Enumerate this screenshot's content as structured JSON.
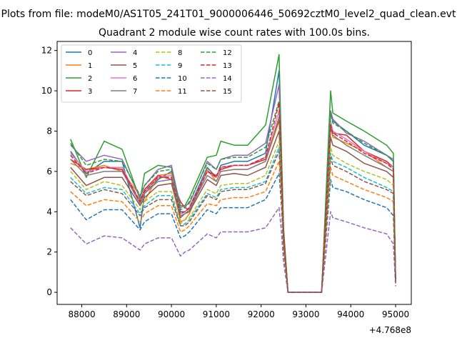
{
  "chart_data": {
    "type": "line",
    "suptitle": "Plots from file: modeM0/AS1T05_241T01_9000006446_50692cztM0_level2_quad_clean.evt",
    "title": "Quadrant 2 module wise count rates with 100.0s bins.",
    "xlabel": "",
    "ylabel": "",
    "x_offset_label": "+4.768e8",
    "xlim": [
      87450,
      95350
    ],
    "ylim": [
      -0.6,
      12.45
    ],
    "xticks": [
      88000,
      89000,
      90000,
      91000,
      92000,
      93000,
      94000,
      95000
    ],
    "xtick_labels": [
      "88000",
      "89000",
      "90000",
      "91000",
      "92000",
      "93000",
      "94000",
      "95000"
    ],
    "yticks": [
      0,
      2,
      4,
      6,
      8,
      10,
      12
    ],
    "ytick_labels": [
      "0",
      "2",
      "4",
      "6",
      "8",
      "10",
      "12"
    ],
    "grid": false,
    "legend_position": "top-left",
    "x": [
      87750,
      88100,
      88500,
      88900,
      89300,
      89400,
      89700,
      90000,
      90200,
      90300,
      90400,
      90800,
      91000,
      91100,
      91400,
      91700,
      92100,
      92400,
      92450,
      92500,
      92600,
      92700,
      93350,
      93550,
      93600,
      93900,
      94300,
      94800,
      94950,
      95000
    ],
    "series": [
      {
        "name": "0",
        "color": "#1f77b4",
        "style": "solid",
        "values": [
          7.0,
          5.9,
          6.5,
          6.5,
          3.2,
          4.9,
          5.6,
          6.0,
          4.0,
          4.0,
          4.2,
          6.2,
          5.7,
          6.3,
          6.5,
          6.5,
          6.9,
          11.0,
          7.0,
          3.0,
          0.0,
          0.0,
          0.0,
          9.0,
          8.5,
          8.0,
          7.3,
          6.8,
          6.5,
          0.6
        ]
      },
      {
        "name": "1",
        "color": "#ff7f0e",
        "style": "solid",
        "values": [
          6.4,
          6.1,
          6.3,
          6.0,
          4.8,
          4.5,
          5.8,
          5.9,
          3.5,
          3.6,
          3.9,
          6.1,
          5.5,
          6.0,
          6.1,
          6.1,
          6.5,
          8.5,
          6.5,
          2.8,
          0.0,
          0.0,
          0.0,
          8.2,
          7.7,
          7.4,
          7.0,
          6.2,
          6.0,
          0.5
        ]
      },
      {
        "name": "2",
        "color": "#2ca02c",
        "style": "solid",
        "values": [
          7.6,
          5.7,
          7.5,
          7.1,
          4.6,
          5.9,
          6.3,
          6.2,
          4.3,
          4.3,
          4.7,
          6.7,
          6.8,
          7.5,
          7.3,
          7.3,
          8.3,
          11.8,
          7.4,
          3.2,
          0.0,
          0.0,
          0.0,
          10.0,
          8.9,
          8.5,
          8.0,
          7.3,
          6.9,
          0.7
        ]
      },
      {
        "name": "3",
        "color": "#d62728",
        "style": "solid",
        "values": [
          6.6,
          6.1,
          6.2,
          6.1,
          4.5,
          5.1,
          5.8,
          5.6,
          4.5,
          4.2,
          4.1,
          6.0,
          5.8,
          6.1,
          6.3,
          6.3,
          6.6,
          8.6,
          6.5,
          2.9,
          0.0,
          0.0,
          0.0,
          8.4,
          7.9,
          7.8,
          7.0,
          6.5,
          6.2,
          0.6
        ]
      },
      {
        "name": "4",
        "color": "#9467bd",
        "style": "solid",
        "values": [
          7.3,
          6.5,
          6.8,
          6.6,
          4.7,
          5.3,
          6.1,
          6.3,
          4.2,
          4.3,
          4.4,
          6.5,
          6.1,
          6.6,
          6.8,
          6.8,
          7.4,
          10.3,
          7.0,
          3.0,
          0.0,
          0.0,
          0.0,
          9.0,
          8.6,
          7.9,
          7.5,
          6.8,
          6.6,
          0.6
        ]
      },
      {
        "name": "5",
        "color": "#8c564b",
        "style": "solid",
        "values": [
          6.2,
          5.3,
          5.7,
          5.7,
          4.3,
          4.7,
          5.3,
          5.4,
          3.7,
          3.9,
          4.0,
          5.6,
          5.3,
          5.8,
          5.9,
          5.8,
          6.2,
          8.0,
          6.0,
          2.7,
          0.0,
          0.0,
          0.0,
          7.7,
          7.3,
          7.0,
          6.4,
          6.0,
          5.7,
          0.5
        ]
      },
      {
        "name": "6",
        "color": "#e377c2",
        "style": "solid",
        "values": [
          6.9,
          6.0,
          6.2,
          6.2,
          4.5,
          5.0,
          5.7,
          5.8,
          3.9,
          4.0,
          4.2,
          6.0,
          5.7,
          6.2,
          6.3,
          6.3,
          6.7,
          9.0,
          6.6,
          2.9,
          0.0,
          0.0,
          0.0,
          8.5,
          8.0,
          7.6,
          7.0,
          6.4,
          6.2,
          0.6
        ]
      },
      {
        "name": "7",
        "color": "#7f7f7f",
        "style": "solid",
        "values": [
          6.6,
          5.8,
          6.0,
          6.0,
          4.4,
          4.9,
          5.5,
          5.6,
          3.8,
          3.9,
          4.1,
          5.8,
          5.5,
          6.0,
          6.1,
          6.1,
          6.5,
          8.7,
          6.4,
          2.8,
          0.0,
          0.0,
          0.0,
          8.2,
          7.8,
          7.3,
          6.8,
          6.2,
          6.0,
          0.6
        ]
      },
      {
        "name": "8",
        "color": "#bcbd22",
        "style": "dashed",
        "values": [
          6.0,
          5.1,
          5.5,
          5.3,
          4.1,
          4.5,
          5.0,
          5.0,
          3.4,
          3.6,
          3.7,
          5.1,
          4.9,
          5.3,
          5.4,
          5.4,
          5.8,
          7.5,
          5.6,
          2.6,
          0.0,
          0.0,
          0.0,
          7.2,
          6.8,
          6.4,
          6.0,
          5.6,
          5.3,
          0.5
        ]
      },
      {
        "name": "9",
        "color": "#17becf",
        "style": "dashed",
        "values": [
          5.7,
          4.9,
          5.2,
          5.1,
          3.9,
          4.3,
          4.8,
          4.8,
          3.3,
          3.4,
          3.6,
          4.9,
          4.7,
          5.1,
          5.2,
          5.2,
          5.5,
          7.2,
          5.4,
          2.5,
          0.0,
          0.0,
          0.0,
          6.9,
          6.5,
          6.2,
          5.7,
          5.2,
          5.0,
          0.5
        ]
      },
      {
        "name": "10",
        "color": "#1f77b4",
        "style": "dashed",
        "values": [
          4.6,
          3.6,
          4.1,
          4.1,
          3.1,
          3.5,
          3.9,
          3.9,
          2.7,
          2.8,
          3.0,
          4.1,
          3.9,
          4.2,
          4.2,
          4.2,
          4.6,
          5.9,
          4.4,
          2.1,
          0.0,
          0.0,
          0.0,
          5.6,
          5.2,
          5.0,
          4.6,
          4.2,
          3.8,
          0.4
        ]
      },
      {
        "name": "11",
        "color": "#ff7f0e",
        "style": "dashed",
        "values": [
          5.0,
          4.3,
          4.6,
          4.5,
          3.5,
          3.9,
          4.3,
          4.3,
          3.0,
          3.1,
          3.3,
          4.4,
          4.3,
          4.6,
          4.7,
          4.7,
          5.0,
          6.5,
          4.9,
          2.3,
          0.0,
          0.0,
          0.0,
          6.2,
          5.8,
          5.5,
          5.1,
          4.7,
          4.5,
          0.4
        ]
      },
      {
        "name": "12",
        "color": "#2ca02c",
        "style": "dashed",
        "values": [
          7.4,
          6.3,
          6.6,
          6.5,
          4.8,
          5.3,
          6.0,
          6.1,
          4.1,
          4.2,
          4.5,
          6.4,
          6.1,
          6.6,
          6.7,
          6.7,
          7.2,
          9.5,
          7.0,
          3.1,
          0.0,
          0.0,
          0.0,
          8.9,
          8.4,
          8.0,
          7.4,
          6.8,
          6.5,
          0.6
        ]
      },
      {
        "name": "13",
        "color": "#d62728",
        "style": "dashed",
        "values": [
          6.8,
          5.9,
          6.2,
          6.1,
          4.5,
          5.0,
          5.7,
          5.7,
          3.9,
          4.0,
          4.2,
          6.0,
          5.7,
          6.2,
          6.3,
          6.3,
          6.7,
          9.4,
          6.6,
          2.9,
          0.0,
          0.0,
          0.0,
          8.3,
          7.9,
          7.5,
          6.9,
          6.4,
          6.1,
          0.6
        ]
      },
      {
        "name": "14",
        "color": "#9467bd",
        "style": "dashed",
        "values": [
          3.2,
          2.4,
          2.8,
          2.7,
          2.1,
          2.4,
          2.7,
          2.7,
          1.8,
          2.0,
          2.1,
          2.9,
          2.7,
          3.0,
          3.0,
          3.0,
          3.2,
          4.2,
          3.1,
          1.5,
          0.0,
          0.0,
          0.0,
          4.0,
          3.7,
          3.5,
          3.2,
          2.9,
          2.4,
          0.3
        ]
      },
      {
        "name": "15",
        "color": "#8c564b",
        "style": "dashed",
        "values": [
          5.5,
          4.8,
          5.1,
          4.9,
          3.8,
          4.2,
          4.6,
          4.6,
          3.3,
          3.3,
          3.5,
          4.8,
          4.6,
          5.0,
          5.1,
          5.1,
          5.4,
          7.0,
          5.3,
          2.5,
          0.0,
          0.0,
          0.0,
          6.7,
          6.3,
          6.0,
          5.5,
          5.1,
          4.9,
          0.5
        ]
      }
    ]
  }
}
